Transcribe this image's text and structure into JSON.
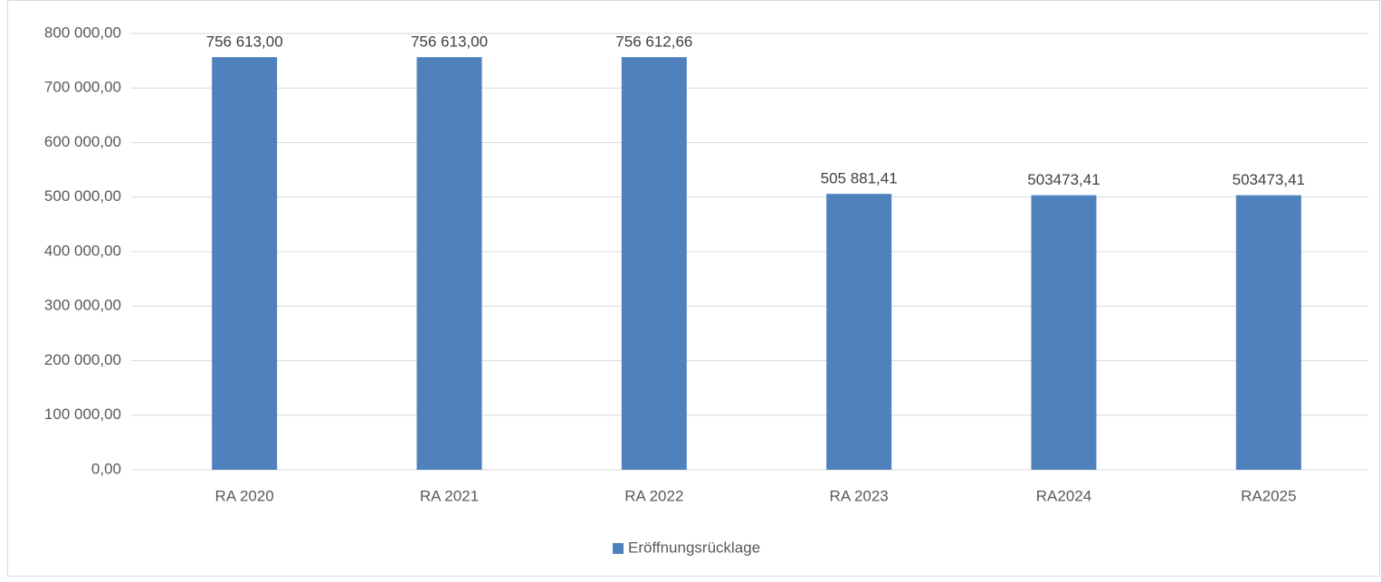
{
  "chart_data": {
    "type": "bar",
    "categories": [
      "RA 2020",
      "RA 2021",
      "RA 2022",
      "RA 2023",
      "RA2024",
      "RA2025"
    ],
    "series": [
      {
        "name": "Eröffnungsrücklage",
        "color": "#4f81bd",
        "values": [
          756613,
          756613,
          756612.66,
          505881.41,
          503473.41,
          503473.41
        ],
        "value_labels": [
          "756 613,00",
          "756 613,00",
          "756 612,66",
          "505 881,41",
          "503473,41",
          "503473,41"
        ]
      }
    ],
    "ylim": [
      0,
      800000
    ],
    "yticks": [
      {
        "value": 0,
        "label": "0,00"
      },
      {
        "value": 100000,
        "label": "100 000,00"
      },
      {
        "value": 200000,
        "label": "200 000,00"
      },
      {
        "value": 300000,
        "label": "300 000,00"
      },
      {
        "value": 400000,
        "label": "400 000,00"
      },
      {
        "value": 500000,
        "label": "500 000,00"
      },
      {
        "value": 600000,
        "label": "600 000,00"
      },
      {
        "value": 700000,
        "label": "700 000,00"
      },
      {
        "value": 800000,
        "label": "800 000,00"
      }
    ],
    "grid": true,
    "legend": "bottom"
  }
}
